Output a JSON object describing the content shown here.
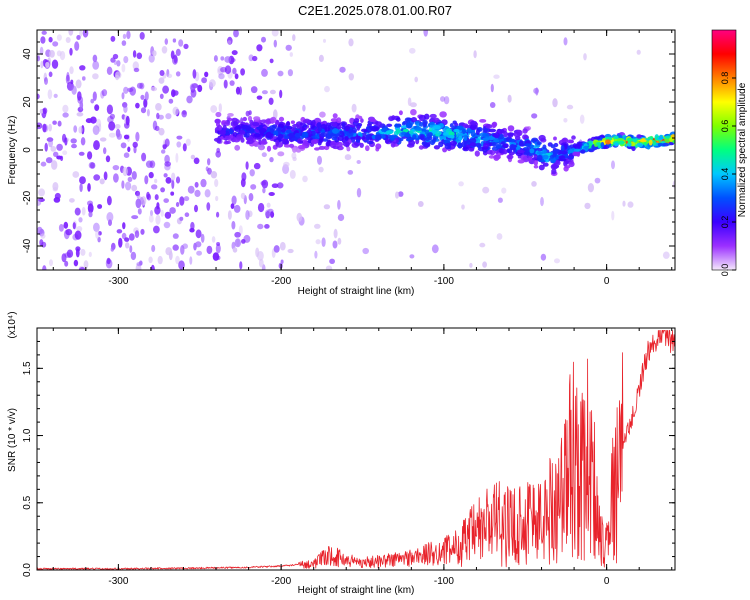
{
  "figure": {
    "title": "C2E1.2025.078.01.00.R07"
  },
  "colors": {
    "background": "#ffffff",
    "axis": "#000000",
    "snr_line": "#e8232b",
    "colorbar_stops": [
      "#f5e9fb",
      "#9b30ff",
      "#3a00ff",
      "#0050ff",
      "#00c8ff",
      "#00ff80",
      "#7fff00",
      "#ffff00",
      "#ff8000",
      "#ff0000",
      "#ff0080"
    ]
  },
  "chart_data": [
    {
      "type": "heatmap",
      "title": "",
      "xlabel": "Height of straight line (km)",
      "ylabel": "Frequency (Hz)",
      "xlim": [
        -350,
        42
      ],
      "ylim": [
        -50,
        50
      ],
      "xticks": [
        -300,
        -200,
        -100,
        0
      ],
      "xtick_labels": [
        "-300",
        "-200",
        "-100",
        "0"
      ],
      "yticks": [
        -40,
        -20,
        0,
        20,
        40
      ],
      "ytick_labels": [
        "-40",
        "-20",
        "0",
        "20",
        "40"
      ],
      "grid": false,
      "colorbar": {
        "label": "Normalized spectral amplitude",
        "range": [
          0,
          1
        ],
        "ticks": [
          0.0,
          0.2,
          0.4,
          0.6,
          0.8
        ],
        "tick_labels": [
          "0.0",
          "0.2",
          "0.4",
          "0.6",
          "0.8"
        ],
        "colormap": "rainbow (purple-blue-cyan-green-yellow-red-magenta)"
      },
      "ridge": {
        "description_x": [
          -230,
          -200,
          -150,
          -120,
          -100,
          -80,
          -60,
          -45,
          -35,
          -25,
          -15,
          -5,
          5,
          20,
          35,
          42
        ],
        "frequency_hz": [
          8,
          7,
          7,
          8,
          7,
          5,
          3,
          1,
          -3,
          -1,
          1,
          3,
          4,
          3,
          4,
          5
        ],
        "amplitude": [
          0.25,
          0.3,
          0.35,
          0.45,
          0.5,
          0.4,
          0.35,
          0.4,
          0.45,
          0.3,
          0.5,
          0.7,
          0.85,
          0.9,
          0.85,
          0.8
        ]
      }
    },
    {
      "type": "line",
      "title": "",
      "xlabel": "Height of straight line (km)",
      "ylabel": "SNR (10 * v/v)",
      "y_scale_note": "(x10⁴)",
      "xlim": [
        -350,
        42
      ],
      "ylim": [
        0,
        1.8
      ],
      "xticks": [
        -300,
        -200,
        -100,
        0
      ],
      "xtick_labels": [
        "-300",
        "-200",
        "-100",
        "0"
      ],
      "yticks": [
        0.0,
        0.5,
        1.0,
        1.5
      ],
      "ytick_labels": [
        "0.0",
        "0.5",
        "1.0",
        "1.5"
      ],
      "grid": false,
      "series": [
        {
          "x": [
            -350,
            -300,
            -250,
            -220,
            -200,
            -180,
            -170,
            -160,
            -150,
            -140,
            -120,
            -100,
            -90,
            -80,
            -70,
            -60,
            -50,
            -45,
            -40,
            -35,
            -30,
            -25,
            -22,
            -20,
            -18,
            -15,
            -12,
            -10,
            -8,
            -5,
            -3,
            0,
            3,
            5,
            8,
            10,
            15,
            20,
            25,
            30,
            35,
            38,
            40,
            42
          ],
          "y": [
            0.01,
            0.01,
            0.015,
            0.02,
            0.03,
            0.05,
            0.12,
            0.08,
            0.06,
            0.07,
            0.1,
            0.15,
            0.2,
            0.3,
            0.4,
            0.35,
            0.4,
            0.45,
            0.38,
            0.5,
            0.55,
            0.7,
            0.9,
            1.0,
            0.85,
            0.75,
            0.95,
            0.85,
            0.7,
            0.4,
            0.25,
            0.3,
            0.55,
            0.65,
            0.8,
            0.95,
            1.1,
            1.35,
            1.6,
            1.72,
            1.78,
            1.75,
            1.7,
            1.65
          ]
        }
      ]
    }
  ]
}
